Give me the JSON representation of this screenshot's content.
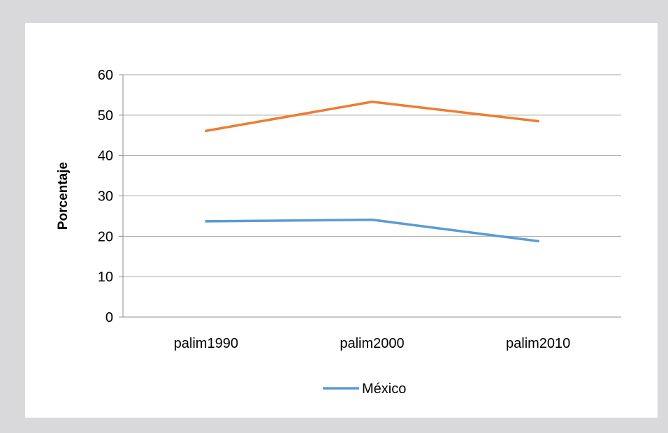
{
  "chart_data": {
    "type": "line",
    "categories": [
      "palim1990",
      "palim2000",
      "palim2010"
    ],
    "series": [
      {
        "name": "México",
        "values": [
          23.7,
          24.1,
          18.8
        ],
        "color": "#5b9bd5"
      },
      {
        "values": [
          46.1,
          53.3,
          48.5
        ],
        "color": "#ed7d31"
      }
    ],
    "ylabel": "Porcentaje",
    "ylim": [
      0,
      60
    ],
    "yticks": [
      0,
      10,
      20,
      30,
      40,
      50,
      60
    ],
    "grid": true,
    "legend": "bottom",
    "legend_entries": [
      "México"
    ]
  }
}
